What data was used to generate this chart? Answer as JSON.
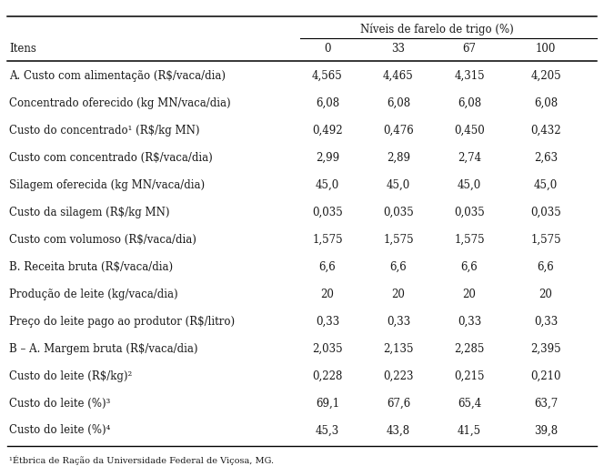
{
  "header_group": "Níveis de farelo de trigo (%)",
  "col_headers": [
    "0",
    "33",
    "67",
    "100"
  ],
  "row_label_header": "Itens",
  "rows": [
    {
      "label": "A. Custo com alimentação (R$/vaca/dia)",
      "superscript": "",
      "values": [
        "4,565",
        "4,465",
        "4,315",
        "4,205"
      ]
    },
    {
      "label": "Concentrado oferecido (kg MN/vaca/dia)",
      "superscript": "",
      "values": [
        "6,08",
        "6,08",
        "6,08",
        "6,08"
      ]
    },
    {
      "label": "Custo do concentrado¹ (R$/kg MN)",
      "superscript": "",
      "values": [
        "0,492",
        "0,476",
        "0,450",
        "0,432"
      ]
    },
    {
      "label": "Custo com concentrado (R$/vaca/dia)",
      "superscript": "",
      "values": [
        "2,99",
        "2,89",
        "2,74",
        "2,63"
      ]
    },
    {
      "label": "Silagem oferecida (kg MN/vaca/dia)",
      "superscript": "",
      "values": [
        "45,0",
        "45,0",
        "45,0",
        "45,0"
      ]
    },
    {
      "label": "Custo da silagem (R$/kg MN)",
      "superscript": "",
      "values": [
        "0,035",
        "0,035",
        "0,035",
        "0,035"
      ]
    },
    {
      "label": "Custo com volumoso (R$/vaca/dia)",
      "superscript": "",
      "values": [
        "1,575",
        "1,575",
        "1,575",
        "1,575"
      ]
    },
    {
      "label": "B. Receita bruta (R$/vaca/dia)",
      "superscript": "",
      "values": [
        "6,6",
        "6,6",
        "6,6",
        "6,6"
      ]
    },
    {
      "label": "Produção de leite (kg/vaca/dia)",
      "superscript": "",
      "values": [
        "20",
        "20",
        "20",
        "20"
      ]
    },
    {
      "label": "Preço do leite pago ao produtor (R$/litro)",
      "superscript": "",
      "values": [
        "0,33",
        "0,33",
        "0,33",
        "0,33"
      ]
    },
    {
      "label": "B – A. Margem bruta (R$/vaca/dia)",
      "superscript": "",
      "values": [
        "2,035",
        "2,135",
        "2,285",
        "2,395"
      ]
    },
    {
      "label": "Custo do leite (R$/kg)²",
      "superscript": "",
      "values": [
        "0,228",
        "0,223",
        "0,215",
        "0,210"
      ]
    },
    {
      "label": "Custo do leite (%)³",
      "superscript": "",
      "values": [
        "69,1",
        "67,6",
        "65,4",
        "63,7"
      ]
    },
    {
      "label": "Custo do leite (%)⁴",
      "superscript": "",
      "values": [
        "45,3",
        "43,8",
        "41,5",
        "39,8"
      ]
    }
  ],
  "footnote": "¹Étbrica de Ração da Universidade Federal de Viçosa, MG.",
  "background_color": "#ffffff",
  "text_color": "#1a1a1a",
  "font_size": 8.5,
  "header_font_size": 8.5
}
